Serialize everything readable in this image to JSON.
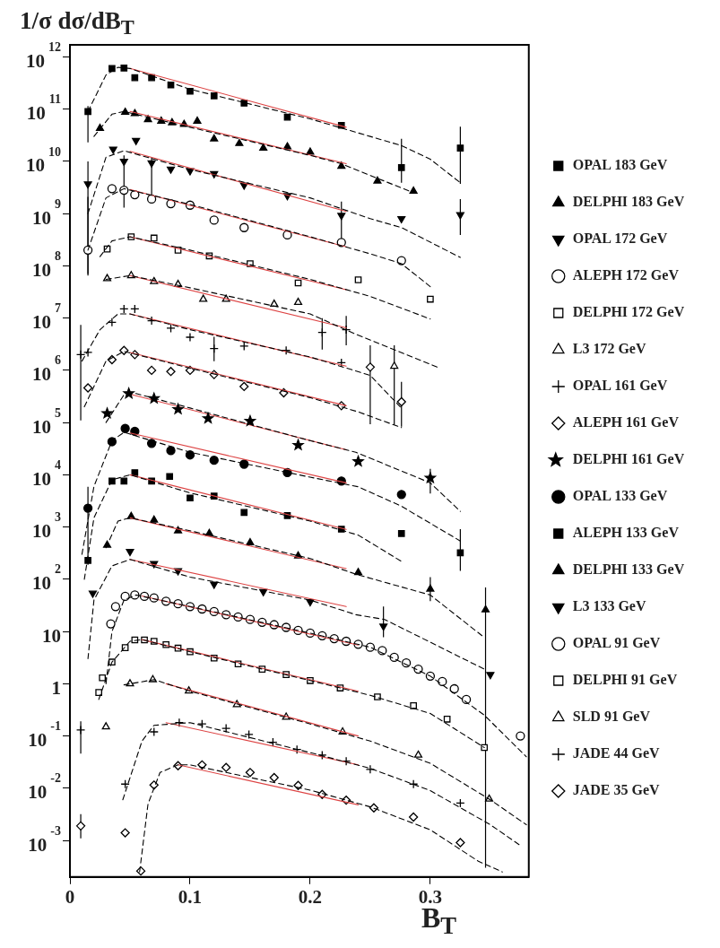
{
  "chart_data": {
    "type": "scatter",
    "ylabel": "1/σ dσ/dB$_{T}$",
    "xlabel": "B$_{T}$",
    "log": "y",
    "grid": false,
    "legend": "right",
    "xlim": [
      0,
      0.382
    ],
    "xticks": [
      0,
      0.1,
      0.2,
      0.3
    ],
    "ylim": [
      0.0002,
      1700000000000.0
    ],
    "yticks": [
      {
        "value": 0.001,
        "label": "10$^{-3}$"
      },
      {
        "value": 0.01,
        "label": "10$^{-2}$"
      },
      {
        "value": 0.1,
        "label": "10$^{-1}$"
      },
      1,
      10,
      {
        "value": 100,
        "label": "10$^{2}$"
      },
      {
        "value": 1000,
        "label": "10$^{3}$"
      },
      {
        "value": 10000,
        "label": "10$^{4}$"
      },
      {
        "value": 100000,
        "label": "10$^{5}$"
      },
      {
        "value": 1000000,
        "label": "10$^{6}$"
      },
      {
        "value": 10000000,
        "label": "10$^{7}$"
      },
      {
        "value": 100000000,
        "label": "10$^{8}$"
      },
      {
        "value": 1000000000,
        "label": "10$^{9}$"
      },
      {
        "value": 10000000000,
        "label": "10$^{10}$"
      },
      {
        "value": 100000000000,
        "label": "10$^{11}$"
      },
      {
        "value": 1000000000000,
        "label": "10$^{12}$"
      }
    ],
    "series": [
      {
        "name": "OPAL 183 GeV",
        "color": "#000000",
        "marker": "square",
        "x": [
          0.015,
          0.035,
          0.045,
          0.054,
          0.068,
          0.084,
          0.1,
          0.12,
          0.145,
          0.181,
          0.226,
          0.276,
          0.325
        ],
        "values": [
          90000000000.0,
          600000000000.0,
          610000000000.0,
          400000000000.0,
          400000000000.0,
          290000000000.0,
          220000000000.0,
          180000000000.0,
          130000000000.0,
          70000000000.0,
          49000000000.0,
          7600000000.0,
          18000000000.0
        ],
        "errors": [
          [
            23000000000.0,
            115000000000.0
          ],
          null,
          null,
          null,
          null,
          null,
          null,
          null,
          null,
          null,
          null,
          [
            3900000000.0,
            27000000000.0
          ],
          [
            3700000000.0,
            46000000000.0
          ]
        ]
      },
      {
        "name": "DELPHI 183 GeV",
        "color": "#000000",
        "marker": "triangle",
        "x": [
          0.025,
          0.046,
          0.054,
          0.065,
          0.076,
          0.085,
          0.095,
          0.106,
          0.12,
          0.141,
          0.161,
          0.181,
          0.2,
          0.226,
          0.256,
          0.286
        ],
        "values": [
          43000000000.0,
          87000000000.0,
          82000000000.0,
          63000000000.0,
          59000000000.0,
          55000000000.0,
          51000000000.0,
          59000000000.0,
          27000000000.0,
          22000000000.0,
          18000000000.0,
          19000000000.0,
          15000000000.0,
          8100000000.0,
          4200000000.0,
          2700000000.0
        ]
      },
      {
        "name": "OPAL 172 GeV",
        "color": "#000000",
        "marker": "triangle_down",
        "x": [
          0.015,
          0.036,
          0.045,
          0.055,
          0.068,
          0.084,
          0.1,
          0.12,
          0.145,
          0.181,
          0.226,
          0.276,
          0.325
        ],
        "values": [
          3700000000.0,
          17000000000.0,
          10000000000.0,
          25000000000.0,
          9300000000.0,
          7100000000.0,
          6600000000.0,
          5800000000.0,
          3500000000.0,
          2200000000.0,
          920000000.0,
          800000000.0,
          950000000.0
        ],
        "errors": [
          [
            65000000.0,
            10000000000.0
          ],
          null,
          [
            1300000000.0,
            13000000000.0
          ],
          null,
          [
            1900000000.0,
            12000000000.0
          ],
          null,
          null,
          null,
          null,
          null,
          [
            300000000.0,
            1700000000.0
          ],
          null,
          [
            390000000.0,
            1900000000.0
          ]
        ]
      },
      {
        "name": "ALEPH 172 GeV",
        "color": "#000000",
        "marker": "circle-open",
        "x": [
          0.015,
          0.035,
          0.045,
          0.054,
          0.068,
          0.084,
          0.1,
          0.12,
          0.145,
          0.181,
          0.226,
          0.276
        ],
        "values": [
          200000000.0,
          3000000000.0,
          2800000000.0,
          2300000000.0,
          1900000000.0,
          1550000000.0,
          1450000000.0,
          750000000.0,
          540000000.0,
          390000000.0,
          280000000.0,
          126000000.0
        ],
        "errors": [
          [
            70000000.0,
            2100000000.0
          ],
          null,
          null,
          null,
          null,
          null,
          null,
          null,
          null,
          null,
          null,
          null
        ]
      },
      {
        "name": "DELPHI 172 GeV",
        "color": "#000000",
        "marker": "square-open",
        "x": [
          0.031,
          0.051,
          0.07,
          0.09,
          0.116,
          0.15,
          0.19,
          0.24,
          0.3
        ],
        "values": [
          210000000.0,
          360000000.0,
          340000000.0,
          200000000.0,
          155000000.0,
          110000000.0,
          47000000.0,
          54000000.0,
          23000000.0
        ]
      },
      {
        "name": "L3 172 GeV",
        "color": "#000000",
        "marker": "triangle-open",
        "x": [
          0.031,
          0.051,
          0.07,
          0.09,
          0.111,
          0.13,
          0.17,
          0.19,
          0.27
        ],
        "values": [
          57000000.0,
          65000000.0,
          50000000.0,
          44000000.0,
          23000000.0,
          23000000.0,
          18500000.0,
          20000000.0,
          1200000.0
        ],
        "errors": [
          null,
          null,
          null,
          null,
          null,
          null,
          null,
          null,
          [
            90000.0,
            3000000.0
          ]
        ]
      },
      {
        "name": "OPAL 161 GeV",
        "color": "#000000",
        "marker": "cross",
        "x": [
          0.009,
          0.015,
          0.035,
          0.045,
          0.054,
          0.068,
          0.084,
          0.1,
          0.12,
          0.145,
          0.18,
          0.21,
          0.226,
          0.23
        ],
        "values": [
          2000000.0,
          2200000.0,
          8300000.0,
          15000000.0,
          15000000.0,
          8900000.0,
          6400000.0,
          4300000.0,
          2600000.0,
          2900000.0,
          2400000.0,
          5300000.0,
          1400000.0,
          6000000.0
        ],
        "errors": [
          [
            110000.0,
            7400000.0
          ],
          null,
          null,
          null,
          null,
          null,
          null,
          null,
          [
            1500000.0,
            4400000.0
          ],
          null,
          null,
          [
            2500000.0,
            10000000.0
          ],
          null,
          [
            3000000.0,
            11000000.0
          ]
        ]
      },
      {
        "name": "ALEPH 161 GeV",
        "color": "#000000",
        "marker": "diamond-open",
        "x": [
          0.015,
          0.035,
          0.045,
          0.054,
          0.068,
          0.084,
          0.1,
          0.12,
          0.145,
          0.178,
          0.226,
          0.25,
          0.276
        ],
        "values": [
          460000.0,
          1600000.0,
          2400000.0,
          2000000.0,
          1000000.0,
          950000.0,
          1000000.0,
          830000.0,
          490000.0,
          370000.0,
          210000.0,
          1150000.0,
          250000.0
        ],
        "errors": [
          null,
          null,
          null,
          null,
          null,
          null,
          null,
          null,
          null,
          null,
          null,
          [
            93000.0,
            3000000.0
          ],
          [
            83000.0,
            600000.0
          ]
        ]
      },
      {
        "name": "DELPHI 161 GeV",
        "color": "#000000",
        "marker": "star",
        "x": [
          0.031,
          0.049,
          0.07,
          0.09,
          0.115,
          0.15,
          0.19,
          0.24,
          0.3
        ],
        "values": [
          150000.0,
          360000.0,
          290000.0,
          180000.0,
          120000.0,
          107000.0,
          37000.0,
          18000.0,
          8700.0
        ],
        "errors": [
          null,
          null,
          null,
          null,
          null,
          null,
          null,
          null,
          [
            4400.0,
            13000.0
          ]
        ]
      },
      {
        "name": "OPAL 133 GeV",
        "color": "#000000",
        "marker": "circle",
        "x": [
          0.015,
          0.035,
          0.046,
          0.054,
          0.068,
          0.084,
          0.1,
          0.12,
          0.145,
          0.181,
          0.226,
          0.276
        ],
        "values": [
          2300.0,
          43000.0,
          77000.0,
          68000.0,
          40000.0,
          29000.0,
          24000.0,
          19000.0,
          16000.0,
          11000.0,
          7600.0,
          4200.0
        ],
        "errors": [
          [
            190,
            5900.0
          ],
          null,
          null,
          null,
          null,
          null,
          null,
          null,
          null,
          null,
          null,
          null
        ]
      },
      {
        "name": "ALEPH 133 GeV",
        "color": "#000000",
        "marker": "square",
        "x": [
          0.015,
          0.035,
          0.045,
          0.054,
          0.068,
          0.083,
          0.1,
          0.12,
          0.145,
          0.181,
          0.226,
          0.276,
          0.325
        ],
        "values": [
          230,
          7600.0,
          7600.0,
          11000.0,
          7600.0,
          9300.0,
          3600.0,
          3900.0,
          1900.0,
          1660.0,
          910,
          750,
          320
        ],
        "errors": [
          null,
          null,
          null,
          null,
          null,
          null,
          null,
          null,
          null,
          null,
          null,
          null,
          [
            145,
            910
          ]
        ]
      },
      {
        "name": "DELPHI 133 GeV",
        "color": "#000000",
        "marker": "triangle",
        "x": [
          0.031,
          0.051,
          0.07,
          0.09,
          0.116,
          0.15,
          0.19,
          0.24,
          0.3,
          0.346
        ],
        "values": [
          450,
          1600,
          1360,
          850,
          750,
          500,
          280,
          135,
          65,
          26
        ],
        "errors": [
          null,
          null,
          null,
          null,
          null,
          null,
          null,
          null,
          [
            38,
            110
          ],
          [
            0.0003,
            70
          ]
        ]
      },
      {
        "name": "L3 133 GeV",
        "color": "#000000",
        "marker": "triangle_down",
        "x": [
          0.019,
          0.05,
          0.07,
          0.09,
          0.12,
          0.161,
          0.2,
          0.261,
          0.35
        ],
        "values": [
          54,
          340,
          200,
          145,
          80,
          58,
          37,
          12.6,
          1.5
        ],
        "errors": [
          null,
          null,
          null,
          null,
          null,
          null,
          null,
          [
            7.8,
            30
          ],
          null
        ]
      },
      {
        "name": "OPAL 91 GeV",
        "color": "#000000",
        "marker": "circle-open",
        "x": [
          0.034,
          0.038,
          0.046,
          0.054,
          0.062,
          0.07,
          0.08,
          0.09,
          0.1,
          0.11,
          0.12,
          0.13,
          0.14,
          0.15,
          0.16,
          0.17,
          0.18,
          0.19,
          0.2,
          0.21,
          0.22,
          0.23,
          0.24,
          0.25,
          0.26,
          0.27,
          0.28,
          0.29,
          0.3,
          0.31,
          0.32,
          0.33,
          0.375
        ],
        "values": [
          14,
          30,
          47,
          50,
          47,
          44,
          38,
          34,
          30,
          27,
          24,
          21,
          19,
          17,
          15,
          13.5,
          12,
          10.5,
          9.3,
          8.3,
          7.3,
          6.5,
          5.7,
          5,
          4.3,
          3.2,
          2.5,
          1.9,
          1.4,
          1.1,
          0.8,
          0.5,
          0.1
        ]
      },
      {
        "name": "DELPHI 91 GeV",
        "color": "#000000",
        "marker": "square-open",
        "x": [
          0.024,
          0.027,
          0.035,
          0.046,
          0.054,
          0.062,
          0.07,
          0.08,
          0.09,
          0.1,
          0.12,
          0.14,
          0.16,
          0.18,
          0.2,
          0.225,
          0.256,
          0.286,
          0.314,
          0.345
        ],
        "values": [
          0.68,
          1.3,
          2.6,
          4.9,
          6.9,
          6.9,
          6.5,
          5.6,
          4.8,
          4.1,
          3.1,
          2.4,
          1.9,
          1.5,
          1.15,
          0.83,
          0.56,
          0.38,
          0.21,
          0.06
        ]
      },
      {
        "name": "SLD 91 GeV",
        "color": "#000000",
        "marker": "triangle-open",
        "x": [
          0.03,
          0.05,
          0.069,
          0.099,
          0.139,
          0.18,
          0.227,
          0.29,
          0.349
        ],
        "values": [
          0.15,
          1.0,
          1.2,
          0.73,
          0.4,
          0.23,
          0.12,
          0.043,
          0.0062
        ]
      },
      {
        "name": "JADE 44 GeV",
        "color": "#000000",
        "marker": "cross",
        "x": [
          0.009,
          0.046,
          0.07,
          0.091,
          0.11,
          0.13,
          0.149,
          0.169,
          0.189,
          0.21,
          0.23,
          0.25,
          0.286,
          0.325
        ],
        "values": [
          0.13,
          0.012,
          0.12,
          0.18,
          0.17,
          0.14,
          0.107,
          0.076,
          0.055,
          0.043,
          0.033,
          0.023,
          0.012,
          0.0052
        ],
        "errors": [
          [
            0.046,
            0.19
          ],
          null,
          null,
          null,
          null,
          null,
          null,
          null,
          null,
          null,
          null,
          null,
          null,
          null
        ]
      },
      {
        "name": "JADE 35 GeV",
        "color": "#000000",
        "marker": "diamond-open",
        "x": [
          0.009,
          0.046,
          0.059,
          0.07,
          0.09,
          0.11,
          0.13,
          0.15,
          0.17,
          0.19,
          0.21,
          0.23,
          0.253,
          0.286,
          0.325
        ],
        "values": [
          0.0019,
          0.0014,
          0.00026,
          0.0115,
          0.027,
          0.028,
          0.025,
          0.02,
          0.016,
          0.0113,
          0.0076,
          0.0059,
          0.0042,
          0.0028,
          0.00091
        ],
        "errors": [
          [
            0.0011,
            0.0032
          ],
          null,
          null,
          null,
          null,
          null,
          null,
          null,
          null,
          null,
          null,
          null,
          null,
          null,
          null
        ]
      },
      {
        "type": "line",
        "color": "#000000",
        "line_style": "dashed",
        "marker": "none",
        "x": [
          0.015,
          0.03,
          0.04,
          0.05,
          0.1,
          0.2,
          0.25,
          0.276,
          0.3,
          0.325
        ],
        "values": [
          90000000000.0,
          450000000000.0,
          630000000000.0,
          600000000000.0,
          240000000000.0,
          65000000000.0,
          30000000000.0,
          20000000000.0,
          11000000000.0,
          3900000000.0
        ]
      },
      {
        "type": "line",
        "color": "#000000",
        "line_style": "dashed",
        "marker": "none",
        "x": [
          0.02,
          0.035,
          0.045,
          0.1,
          0.2,
          0.226,
          0.286
        ],
        "values": [
          30000000000.0,
          80000000000.0,
          90000000000.0,
          45000000000.0,
          13000000000.0,
          9000000000.0,
          2500000000.0
        ]
      },
      {
        "type": "line",
        "color": "#000000",
        "line_style": "dashed",
        "marker": "none",
        "x": [
          0.015,
          0.03,
          0.045,
          0.1,
          0.2,
          0.25,
          0.276,
          0.325
        ],
        "values": [
          1000000000.0,
          12000000000.0,
          16000000000.0,
          7000000000.0,
          2000000000.0,
          800000000.0,
          540000000.0,
          145000000.0
        ]
      },
      {
        "type": "line",
        "color": "#000000",
        "line_style": "dashed",
        "marker": "none",
        "x": [
          0.015,
          0.03,
          0.045,
          0.1,
          0.2,
          0.25,
          0.276,
          0.3
        ],
        "values": [
          200000000.0,
          2000000000.0,
          3000000000.0,
          1500000000.0,
          360000000.0,
          170000000.0,
          110000000.0,
          40000000.0
        ]
      },
      {
        "type": "line",
        "color": "#000000",
        "line_style": "dashed",
        "marker": "none",
        "x": [
          0.025,
          0.035,
          0.05,
          0.1,
          0.2,
          0.25,
          0.3
        ],
        "values": [
          150000000.0,
          300000000.0,
          360000000.0,
          200000000.0,
          55000000.0,
          26000000.0,
          9600000.0
        ]
      },
      {
        "type": "line",
        "color": "#000000",
        "line_style": "dashed",
        "marker": "none",
        "x": [
          0.03,
          0.05,
          0.1,
          0.2,
          0.238,
          0.306
        ],
        "values": [
          55000000.0,
          65000000.0,
          38000000.0,
          12000000.0,
          4900000.0,
          1150000.0
        ]
      },
      {
        "type": "line",
        "color": "#000000",
        "line_style": "dashed",
        "marker": "none",
        "x": [
          0.01,
          0.025,
          0.04,
          0.05,
          0.1,
          0.2,
          0.25,
          0.275
        ],
        "values": [
          1500000.0,
          6000000.0,
          12000000.0,
          12000000.0,
          6000000.0,
          1800000.0,
          800000.0,
          200000.0
        ]
      },
      {
        "type": "line",
        "color": "#000000",
        "line_style": "dashed",
        "marker": "none",
        "x": [
          0.012,
          0.03,
          0.045,
          0.1,
          0.2,
          0.24,
          0.276
        ],
        "values": [
          200000.0,
          1500000.0,
          2300000.0,
          1100000.0,
          300000.0,
          160000.0,
          80000.0
        ]
      },
      {
        "type": "line",
        "color": "#000000",
        "line_style": "dashed",
        "marker": "none",
        "x": [
          0.03,
          0.045,
          0.055,
          0.1,
          0.2,
          0.238,
          0.3,
          0.325
        ],
        "values": [
          100000.0,
          340000.0,
          360000.0,
          190000.0,
          45000.0,
          27000.0,
          7000.0,
          2000.0
        ]
      },
      {
        "type": "line",
        "color": "#000000",
        "line_style": "dashed",
        "marker": "none",
        "x": [
          0.01,
          0.02,
          0.035,
          0.045,
          0.1,
          0.2,
          0.24,
          0.276,
          0.325
        ],
        "values": [
          300,
          6000.0,
          45000.0,
          65000.0,
          27000.0,
          9000.0,
          5900.0,
          2500.0,
          540
        ]
      },
      {
        "type": "line",
        "color": "#000000",
        "line_style": "dashed",
        "marker": "none",
        "x": [
          0.012,
          0.02,
          0.035,
          0.05,
          0.1,
          0.2,
          0.24,
          0.276
        ],
        "values": [
          100,
          1500.0,
          8000.0,
          10000.0,
          4500.0,
          1300.0,
          700,
          220
        ]
      },
      {
        "type": "line",
        "color": "#000000",
        "line_style": "dashed",
        "marker": "none",
        "x": [
          0.03,
          0.04,
          0.05,
          0.1,
          0.2,
          0.238,
          0.3,
          0.344
        ],
        "values": [
          400,
          1300,
          1500,
          850,
          250,
          125,
          50,
          8
        ]
      },
      {
        "type": "line",
        "color": "#000000",
        "line_style": "dashed",
        "marker": "none",
        "x": [
          0.015,
          0.02,
          0.035,
          0.05,
          0.1,
          0.2,
          0.238,
          0.262,
          0.345
        ],
        "values": [
          3,
          40,
          180,
          240,
          110,
          40,
          21,
          17,
          1.9
        ]
      },
      {
        "type": "line",
        "color": "#000000",
        "line_style": "dashed",
        "marker": "none",
        "x": [
          0.03,
          0.035,
          0.045,
          0.055,
          0.1,
          0.2,
          0.25,
          0.3,
          0.345,
          0.38
        ],
        "values": [
          1,
          10,
          40,
          50,
          30,
          9.3,
          5,
          1.4,
          0.25,
          0.04
        ]
      },
      {
        "type": "line",
        "color": "#000000",
        "line_style": "dashed",
        "marker": "none",
        "x": [
          0.024,
          0.035,
          0.05,
          0.06,
          0.1,
          0.2,
          0.25,
          0.3,
          0.345
        ],
        "values": [
          0.5,
          2.6,
          6.5,
          7,
          4.1,
          1.15,
          0.6,
          0.27,
          0.06
        ]
      },
      {
        "type": "line",
        "color": "#000000",
        "line_style": "dashed",
        "marker": "none",
        "x": [
          0.045,
          0.07,
          0.1,
          0.2,
          0.25,
          0.3,
          0.35,
          0.38
        ],
        "values": [
          0.95,
          1.2,
          0.72,
          0.17,
          0.08,
          0.03,
          0.006,
          0.002
        ]
      },
      {
        "type": "line",
        "color": "#000000",
        "line_style": "dashed",
        "marker": "none",
        "x": [
          0.044,
          0.06,
          0.07,
          0.1,
          0.2,
          0.25,
          0.3,
          0.35,
          0.375
        ],
        "values": [
          0.006,
          0.08,
          0.16,
          0.18,
          0.048,
          0.024,
          0.009,
          0.002,
          0.0008
        ]
      },
      {
        "type": "line",
        "color": "#000000",
        "line_style": "dashed",
        "marker": "none",
        "x": [
          0.058,
          0.065,
          0.075,
          0.09,
          0.1,
          0.2,
          0.25,
          0.3,
          0.34,
          0.36
        ],
        "values": [
          0.00025,
          0.005,
          0.02,
          0.028,
          0.028,
          0.0092,
          0.0044,
          0.0016,
          0.0004,
          0.00025
        ]
      },
      {
        "type": "line",
        "color": "#dd4444",
        "line_style": "solid",
        "marker": "none",
        "x": [
          0.05,
          0.23
        ],
        "values": [
          600000000000.0,
          45000000000.0
        ]
      },
      {
        "type": "line",
        "color": "#dd4444",
        "line_style": "solid",
        "marker": "none",
        "x": [
          0.05,
          0.23
        ],
        "values": [
          90000000000.0,
          9000000000.0
        ]
      },
      {
        "type": "line",
        "color": "#dd4444",
        "line_style": "solid",
        "marker": "none",
        "x": [
          0.05,
          0.23
        ],
        "values": [
          15500000000.0,
          1100000000.0
        ]
      },
      {
        "type": "line",
        "color": "#dd4444",
        "line_style": "solid",
        "marker": "none",
        "x": [
          0.05,
          0.23
        ],
        "values": [
          2900000000.0,
          230000000.0
        ]
      },
      {
        "type": "line",
        "color": "#dd4444",
        "line_style": "solid",
        "marker": "none",
        "x": [
          0.05,
          0.23
        ],
        "values": [
          360000000.0,
          35000000.0
        ]
      },
      {
        "type": "line",
        "color": "#dd4444",
        "line_style": "solid",
        "marker": "none",
        "x": [
          0.05,
          0.23
        ],
        "values": [
          65000000.0,
          6500000.0
        ]
      },
      {
        "type": "line",
        "color": "#dd4444",
        "line_style": "solid",
        "marker": "none",
        "x": [
          0.05,
          0.23
        ],
        "values": [
          12000000.0,
          1200000.0
        ]
      },
      {
        "type": "line",
        "color": "#dd4444",
        "line_style": "solid",
        "marker": "none",
        "x": [
          0.05,
          0.23
        ],
        "values": [
          2200000.0,
          210000.0
        ]
      },
      {
        "type": "line",
        "color": "#dd4444",
        "line_style": "solid",
        "marker": "none",
        "x": [
          0.05,
          0.23
        ],
        "values": [
          350000.0,
          30000.0
        ]
      },
      {
        "type": "line",
        "color": "#dd4444",
        "line_style": "solid",
        "marker": "none",
        "x": [
          0.05,
          0.23
        ],
        "values": [
          63000.0,
          7000.0
        ]
      },
      {
        "type": "line",
        "color": "#dd4444",
        "line_style": "solid",
        "marker": "none",
        "x": [
          0.05,
          0.23
        ],
        "values": [
          10000.0,
          900
        ]
      },
      {
        "type": "line",
        "color": "#dd4444",
        "line_style": "solid",
        "marker": "none",
        "x": [
          0.05,
          0.23
        ],
        "values": [
          1500,
          160
        ]
      },
      {
        "type": "line",
        "color": "#dd4444",
        "line_style": "solid",
        "marker": "none",
        "x": [
          0.05,
          0.23
        ],
        "values": [
          240,
          30
        ]
      },
      {
        "type": "line",
        "color": "#dd4444",
        "line_style": "solid",
        "marker": "none",
        "x": [
          0.06,
          0.24
        ],
        "values": [
          48,
          5.5
        ]
      },
      {
        "type": "line",
        "color": "#dd4444",
        "line_style": "solid",
        "marker": "none",
        "x": [
          0.06,
          0.24
        ],
        "values": [
          7,
          0.72
        ]
      },
      {
        "type": "line",
        "color": "#dd4444",
        "line_style": "solid",
        "marker": "none",
        "x": [
          0.08,
          0.24
        ],
        "values": [
          1.0,
          0.1
        ]
      },
      {
        "type": "line",
        "color": "#dd4444",
        "line_style": "solid",
        "marker": "none",
        "x": [
          0.08,
          0.24
        ],
        "values": [
          0.18,
          0.028
        ]
      },
      {
        "type": "line",
        "color": "#dd4444",
        "line_style": "solid",
        "marker": "none",
        "x": [
          0.09,
          0.24
        ],
        "values": [
          0.028,
          0.0048
        ]
      }
    ]
  }
}
